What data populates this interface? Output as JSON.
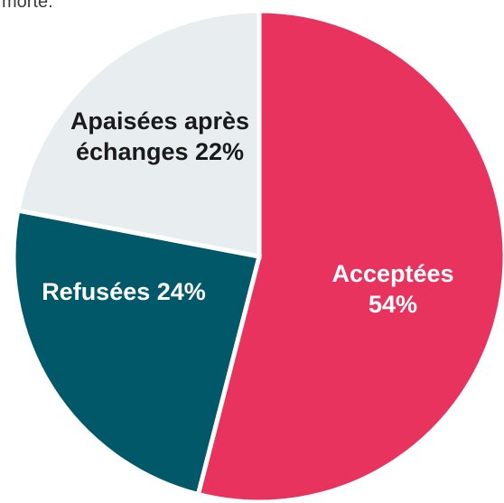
{
  "top_text": "morte.",
  "chart_data": {
    "type": "pie",
    "title": "",
    "start_angle_deg": 0,
    "direction": "clockwise",
    "slices": [
      {
        "label_lines": [
          "Acceptées",
          "54%"
        ],
        "category": "Acceptées",
        "value": 54,
        "color": "#e8335f",
        "label_color": "#ffffff"
      },
      {
        "label_lines": [
          "Refusées 24%"
        ],
        "category": "Refusées",
        "value": 24,
        "color": "#015868",
        "label_color": "#ffffff"
      },
      {
        "label_lines": [
          "Apaisées après",
          "échanges 22%"
        ],
        "category": "Apaisées après échanges",
        "value": 22,
        "color": "#e8edf0",
        "label_color": "#1a1a1a"
      }
    ]
  }
}
